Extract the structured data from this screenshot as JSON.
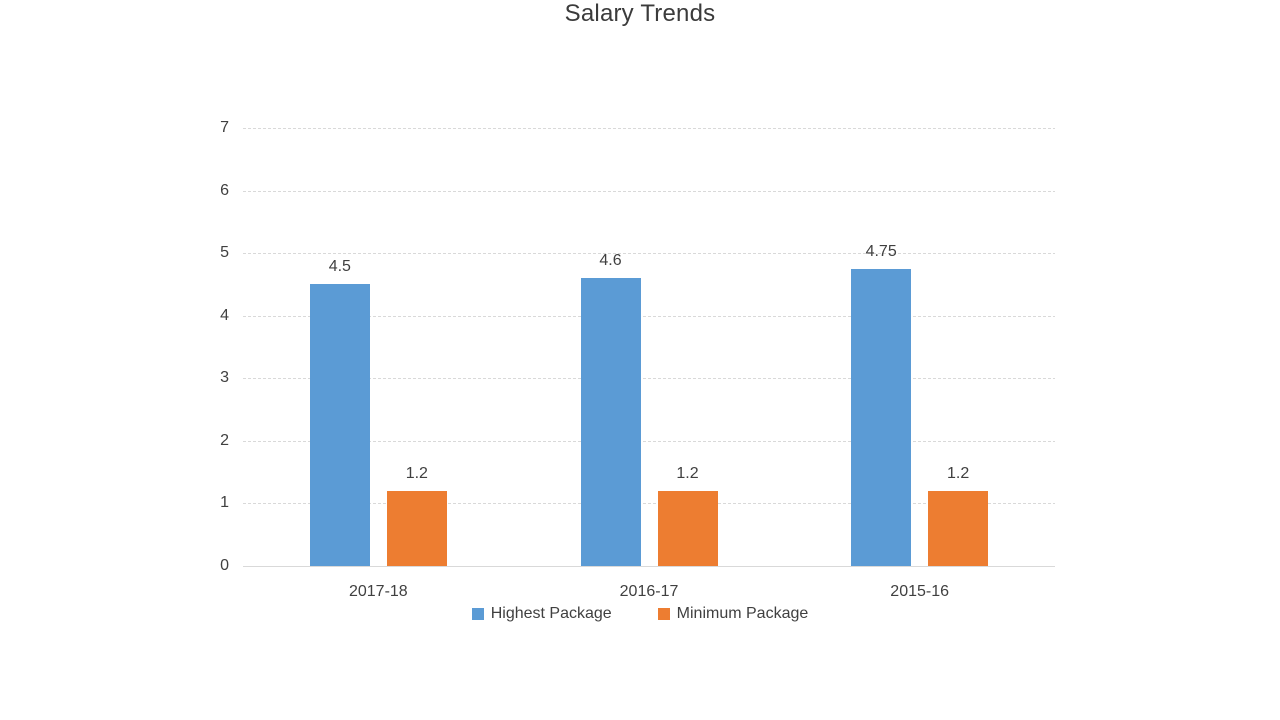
{
  "chart_data": {
    "type": "bar",
    "title": "Salary Trends",
    "categories": [
      "2017-18",
      "2016-17",
      "2015-16"
    ],
    "series": [
      {
        "name": "Highest Package",
        "color": "#5B9BD5",
        "values": [
          4.5,
          4.6,
          4.75
        ]
      },
      {
        "name": "Minimum Package",
        "color": "#ED7D31",
        "values": [
          1.2,
          1.2,
          1.2
        ]
      }
    ],
    "ylim": [
      0,
      7
    ],
    "y_ticks": [
      0,
      1,
      2,
      3,
      4,
      5,
      6,
      7
    ],
    "xlabel": "",
    "ylabel": "",
    "grid": true,
    "legend_position": "bottom",
    "data_labels": true
  },
  "colors": {
    "background": "#FFFFFF",
    "text": "#404040",
    "gridline": "#D9D9D9"
  }
}
